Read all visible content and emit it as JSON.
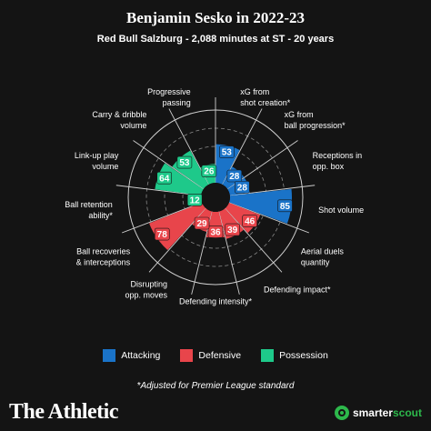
{
  "header": {
    "title": "Benjamin Sesko in 2022-23",
    "subtitle": "Red Bull Salzburg - 2,088 minutes at ST - 20 years"
  },
  "legend": [
    {
      "label": "Attacking",
      "color": "#1a73c8"
    },
    {
      "label": "Defensive",
      "color": "#e8454b"
    },
    {
      "label": "Possession",
      "color": "#1ec98a"
    }
  ],
  "footnote": "*Adjusted for Premier League standard",
  "branding": {
    "publication": "The Athletic",
    "provider_prefix": "smarter",
    "provider_suffix": "scout",
    "provider_icon": "smarterscout-logo-icon"
  },
  "chart_data": {
    "type": "polar-bar",
    "rlim": [
      0,
      100
    ],
    "grid": true,
    "legend_position": "bottom",
    "categories": [
      {
        "label": [
          "xG from",
          "shot creation*"
        ],
        "value": 53,
        "group": "Attacking"
      },
      {
        "label": [
          "xG from",
          "ball progression*"
        ],
        "value": 28,
        "group": "Attacking"
      },
      {
        "label": [
          "Receptions in",
          "opp. box"
        ],
        "value": 28,
        "group": "Attacking"
      },
      {
        "label": [
          "Shot volume"
        ],
        "value": 85,
        "group": "Attacking"
      },
      {
        "label": [
          "Aerial duels",
          "quantity"
        ],
        "value": 46,
        "group": "Defensive"
      },
      {
        "label": [
          "Defending impact*"
        ],
        "value": 39,
        "group": "Defensive"
      },
      {
        "label": [
          "Defending intensity*"
        ],
        "value": 36,
        "group": "Defensive"
      },
      {
        "label": [
          "Disrupting",
          "opp. moves"
        ],
        "value": 29,
        "group": "Defensive"
      },
      {
        "label": [
          "Ball recoveries",
          "& interceptions"
        ],
        "value": 78,
        "group": "Defensive"
      },
      {
        "label": [
          "Ball retention",
          "ability*"
        ],
        "value": 12,
        "group": "Possession"
      },
      {
        "label": [
          "Link-up play",
          "volume"
        ],
        "value": 64,
        "group": "Possession"
      },
      {
        "label": [
          "Carry & dribble",
          "volume"
        ],
        "value": 53,
        "group": "Possession"
      },
      {
        "label": [
          "Progressive",
          "passing"
        ],
        "value": 26,
        "group": "Possession"
      }
    ]
  }
}
